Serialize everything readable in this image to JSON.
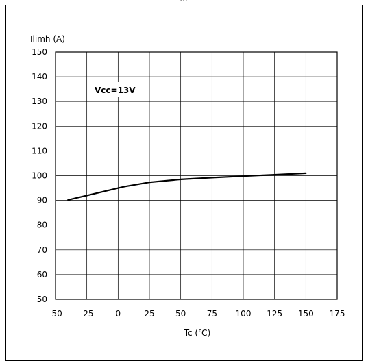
{
  "header_fragment": "...",
  "chart_data": {
    "type": "line",
    "title": "",
    "xlabel": "Tc (℃)",
    "ylabel": "Ilimh (A)",
    "annotation": "Vcc=13V",
    "xlim": [
      -50,
      175
    ],
    "ylim": [
      50,
      150
    ],
    "x_ticks": [
      -50,
      -25,
      0,
      25,
      50,
      75,
      100,
      125,
      150,
      175
    ],
    "y_ticks": [
      50,
      60,
      70,
      80,
      90,
      100,
      110,
      120,
      130,
      140,
      150
    ],
    "grid": true,
    "series": [
      {
        "x": [
          -40,
          -25,
          -10,
          5,
          25,
          50,
          75,
          100,
          125,
          150
        ],
        "y": [
          90.2,
          92.0,
          93.8,
          95.6,
          97.3,
          98.5,
          99.2,
          99.8,
          100.4,
          101.0
        ]
      }
    ]
  }
}
